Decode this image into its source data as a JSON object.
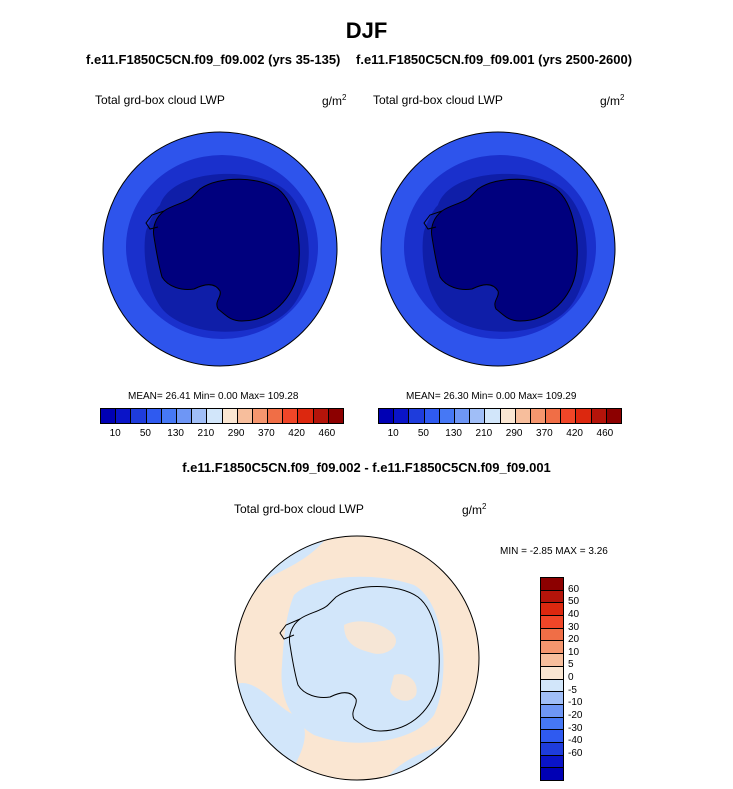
{
  "title": "DJF",
  "cases": {
    "left": "f.e11.F1850C5CN.f09_f09.002 (yrs 35-135)",
    "right": "f.e11.F1850C5CN.f09_f09.001 (yrs 2500-2600)"
  },
  "panels": [
    {
      "field": "Total grd-box cloud LWP",
      "unit": "g/m",
      "unit_exp": "2",
      "stats": "MEAN=  26.41  Min=    0.00  Max= 109.28"
    },
    {
      "field": "Total grd-box cloud LWP",
      "unit": "g/m",
      "unit_exp": "2",
      "stats": "MEAN=  26.30  Min=    0.00  Max= 109.29"
    }
  ],
  "main_colorbar": {
    "colors": [
      "#0000b4",
      "#0a14c8",
      "#1e3cdc",
      "#2f5af0",
      "#4678f5",
      "#6e96f5",
      "#a0bef7",
      "#d2e6fa",
      "#fae6d2",
      "#f7be9c",
      "#f5966e",
      "#f06e46",
      "#f04628",
      "#dc280f",
      "#b4140a",
      "#8c0000"
    ],
    "labels": [
      "10",
      "50",
      "130",
      "210",
      "290",
      "370",
      "420",
      "460"
    ]
  },
  "diff": {
    "title": "f.e11.F1850C5CN.f09_f09.002 - f.e11.F1850C5CN.f09_f09.001",
    "field": "Total grd-box cloud LWP",
    "unit": "g/m",
    "unit_exp": "2",
    "minmax": "MIN =  -2.85 MAX =   3.26",
    "colors": [
      "#8c0000",
      "#b4140a",
      "#dc280f",
      "#f04628",
      "#f06e46",
      "#f5966e",
      "#f7be9c",
      "#fae6d2",
      "#d2e6fa",
      "#a0bef7",
      "#6e96f5",
      "#4678f5",
      "#2f5af0",
      "#1e3cdc",
      "#0a14c8",
      "#0000b4"
    ],
    "labels": [
      "60",
      "50",
      "40",
      "30",
      "20",
      "10",
      "5",
      "0",
      "-5",
      "-10",
      "-20",
      "-30",
      "-40",
      "-60"
    ]
  },
  "map_colors": {
    "outer_ring": "#2e54ec",
    "mid_ring": "#1a30cc",
    "inner_ring": "#0f1ea8",
    "continent": "#00007e",
    "diff_pos": "#fae6d2",
    "diff_neg": "#d2e6fa"
  }
}
